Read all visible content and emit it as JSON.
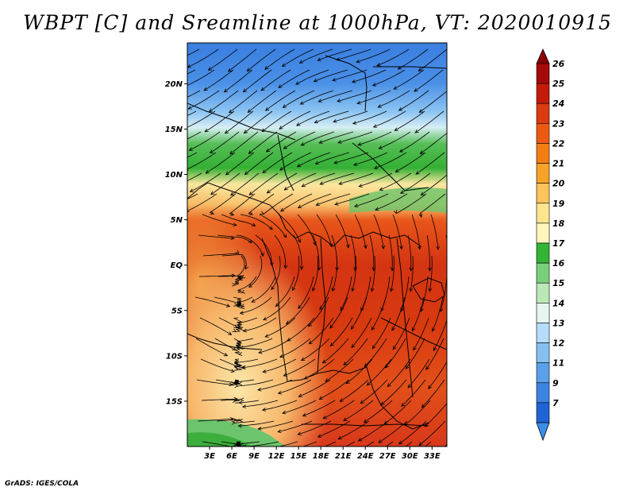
{
  "title": "WBPT [C] and Sreamline at 1000hPa, VT: 2020010915",
  "credit": "GrADS: IGES/COLA",
  "chart_data": {
    "type": "heatmap",
    "variable": "Wet-bulb potential temperature (WBPT)",
    "units": "C",
    "level": "1000hPa",
    "valid_time": "2020010915",
    "overlay": "streamlines",
    "lat_range": [
      -20,
      24.5
    ],
    "lon_range": [
      0,
      35
    ],
    "y_ticks": [
      {
        "value": 20,
        "label": "20N"
      },
      {
        "value": 15,
        "label": "15N"
      },
      {
        "value": 10,
        "label": "10N"
      },
      {
        "value": 5,
        "label": "5N"
      },
      {
        "value": 0,
        "label": "EQ"
      },
      {
        "value": -5,
        "label": "5S"
      },
      {
        "value": -10,
        "label": "10S"
      },
      {
        "value": -15,
        "label": "15S"
      }
    ],
    "x_ticks": [
      {
        "value": 3,
        "label": "3E"
      },
      {
        "value": 6,
        "label": "6E"
      },
      {
        "value": 9,
        "label": "9E"
      },
      {
        "value": 12,
        "label": "12E"
      },
      {
        "value": 15,
        "label": "15E"
      },
      {
        "value": 18,
        "label": "18E"
      },
      {
        "value": 21,
        "label": "21E"
      },
      {
        "value": 24,
        "label": "24E"
      },
      {
        "value": 27,
        "label": "27E"
      },
      {
        "value": 30,
        "label": "30E"
      },
      {
        "value": 33,
        "label": "33E"
      }
    ],
    "colorbar": {
      "orientation": "vertical",
      "placement": "right",
      "labels": [
        {
          "label": "26",
          "color": "#a50a0a"
        },
        {
          "label": "25",
          "color": "#c41a0a"
        },
        {
          "label": "24",
          "color": "#dc3a10"
        },
        {
          "label": "23",
          "color": "#ec5a12"
        },
        {
          "label": "22",
          "color": "#f47e14"
        },
        {
          "label": "21",
          "color": "#f8a228"
        },
        {
          "label": "20",
          "color": "#fcc45a"
        },
        {
          "label": "19",
          "color": "#fde48e"
        },
        {
          "label": "18",
          "color": "#fdf6bc"
        },
        {
          "label": "17",
          "color": "#34b434"
        },
        {
          "label": "16",
          "color": "#7ad07a"
        },
        {
          "label": "15",
          "color": "#bce8b8"
        },
        {
          "label": "14",
          "color": "#e6f6ee"
        },
        {
          "label": "13",
          "color": "#b6dcf8"
        },
        {
          "label": "12",
          "color": "#86c0f2"
        },
        {
          "label": "11",
          "color": "#5aa0ea"
        },
        {
          "label": "9",
          "color": "#3c84e2"
        },
        {
          "label": "7",
          "color": "#1e64d6"
        }
      ],
      "under_color": "#3a8ee8",
      "over_color": "#8c0000"
    }
  }
}
